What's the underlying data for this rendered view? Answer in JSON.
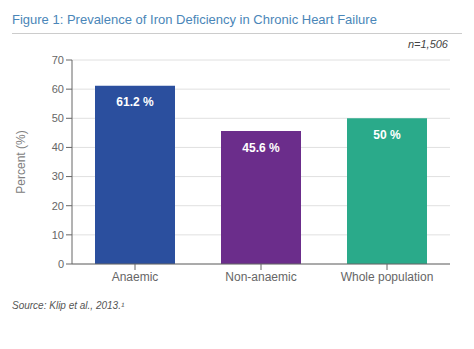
{
  "chart_data": {
    "type": "bar",
    "title": "Figure 1: Prevalence of Iron Deficiency in Chronic Heart Failure",
    "categories": [
      "Anaemic",
      "Non-anaemic",
      "Whole population"
    ],
    "values": [
      61.2,
      45.6,
      50.0
    ],
    "value_labels": [
      "61.2 %",
      "45.6 %",
      "50 %"
    ],
    "data_labels": true,
    "colors": [
      "#2b4f9e",
      "#6b2d8b",
      "#2aaa8a"
    ],
    "ylabel": "Percent (%)",
    "ylim": [
      0,
      70
    ],
    "yticks": [
      0,
      10,
      20,
      30,
      40,
      50,
      60,
      70
    ],
    "grid": true,
    "annotation": "n=1,506",
    "source": "Source: Klip et al., 2013.¹",
    "title_color": "#4a86b8"
  }
}
